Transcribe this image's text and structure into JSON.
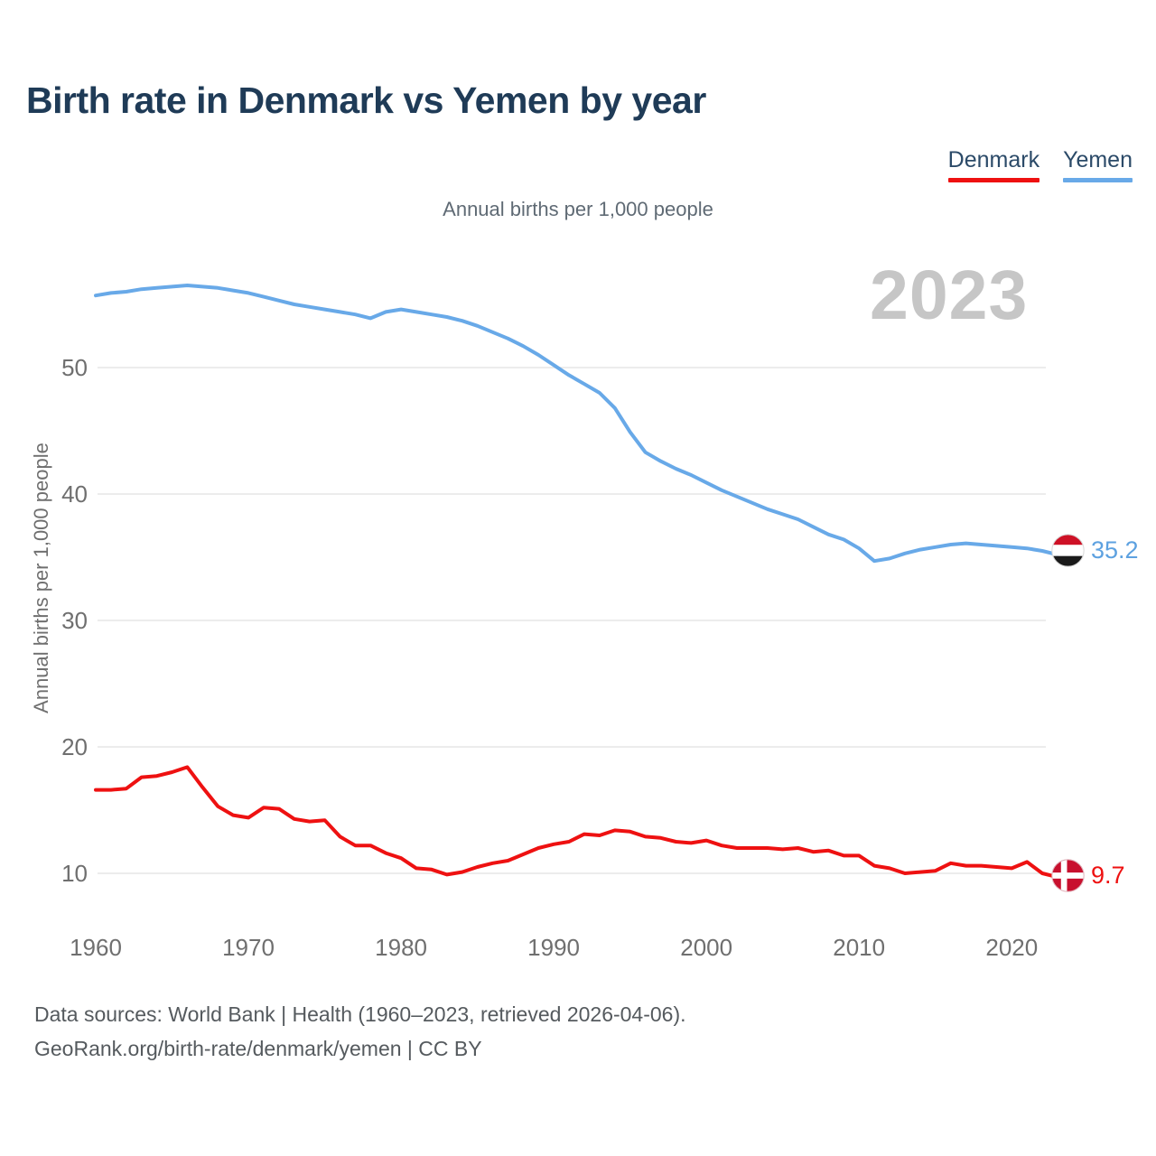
{
  "header": {
    "title": "Birth rate in Denmark vs Yemen by year"
  },
  "legend": {
    "items": [
      {
        "label": "Denmark",
        "color": "#ee1111"
      },
      {
        "label": "Yemen",
        "color": "#68a9e8"
      }
    ]
  },
  "chart_data": {
    "type": "line",
    "title": "Birth rate in Denmark vs Yemen by year",
    "subtitle": "Annual births per 1,000 people",
    "ylabel": "Annual births per 1,000 people",
    "xlabel": "",
    "year_watermark": "2023",
    "x_range": [
      1960,
      2023
    ],
    "x_step": 1,
    "x_ticks": [
      1960,
      1970,
      1980,
      1990,
      2000,
      2010,
      2020
    ],
    "y_ticks": [
      10,
      20,
      30,
      40,
      50
    ],
    "ylim": [
      7,
      58
    ],
    "grid": "horizontal",
    "legend_position": "top-right",
    "series": [
      {
        "name": "Denmark",
        "color": "#ee1111",
        "flag": "denmark",
        "end_label": "9.7",
        "values": [
          16.6,
          16.6,
          16.7,
          17.6,
          17.7,
          18.0,
          18.4,
          16.8,
          15.3,
          14.6,
          14.4,
          15.2,
          15.1,
          14.3,
          14.1,
          14.2,
          12.9,
          12.2,
          12.2,
          11.6,
          11.2,
          10.4,
          10.3,
          9.9,
          10.1,
          10.5,
          10.8,
          11.0,
          11.5,
          12.0,
          12.3,
          12.5,
          13.1,
          13.0,
          13.4,
          13.3,
          12.9,
          12.8,
          12.5,
          12.4,
          12.6,
          12.2,
          12.0,
          12.0,
          12.0,
          11.9,
          12.0,
          11.7,
          11.8,
          11.4,
          11.4,
          10.6,
          10.4,
          10.0,
          10.1,
          10.2,
          10.8,
          10.6,
          10.6,
          10.5,
          10.4,
          10.9,
          10.0,
          9.7
        ]
      },
      {
        "name": "Yemen",
        "color": "#68a9e8",
        "flag": "yemen",
        "end_label": "35.2",
        "values": [
          55.7,
          55.9,
          56.0,
          56.2,
          56.3,
          56.4,
          56.5,
          56.4,
          56.3,
          56.1,
          55.9,
          55.6,
          55.3,
          55.0,
          54.8,
          54.6,
          54.4,
          54.2,
          53.9,
          54.4,
          54.6,
          54.4,
          54.2,
          54.0,
          53.7,
          53.3,
          52.8,
          52.3,
          51.7,
          51.0,
          50.2,
          49.4,
          48.7,
          48.0,
          46.8,
          44.9,
          43.3,
          42.6,
          42.0,
          41.5,
          40.9,
          40.3,
          39.8,
          39.3,
          38.8,
          38.4,
          38.0,
          37.4,
          36.8,
          36.4,
          35.7,
          34.7,
          34.9,
          35.3,
          35.6,
          35.8,
          36.0,
          36.1,
          36.0,
          35.9,
          35.8,
          35.7,
          35.5,
          35.2
        ]
      }
    ]
  },
  "flags": {
    "yemen": {
      "red": "#CE1126",
      "white": "#ffffff",
      "black": "#1a1a1a"
    },
    "denmark": {
      "red": "#C8102E",
      "white": "#ffffff"
    }
  },
  "footer": {
    "line1": "Data sources: World Bank | Health (1960–2023, retrieved 2026-04-06).",
    "line2": "GeoRank.org/birth-rate/denmark/yemen | CC BY"
  }
}
